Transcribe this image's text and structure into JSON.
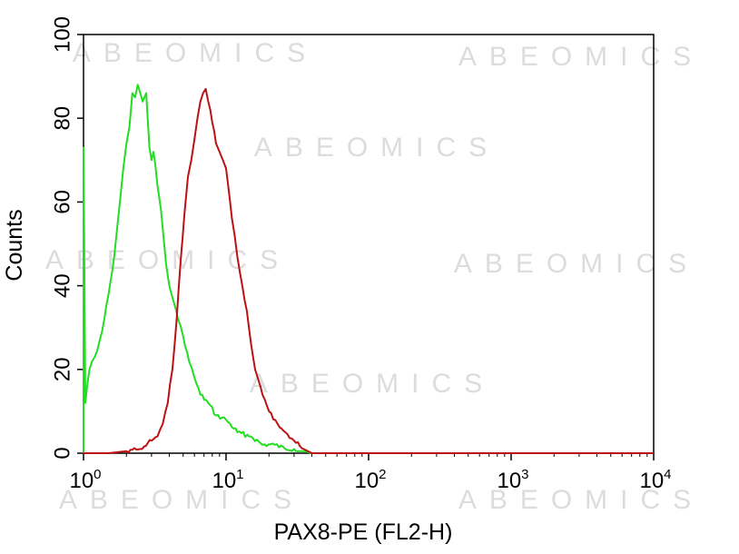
{
  "watermark": "ABEOMICS",
  "chart_data": {
    "type": "line",
    "title": "",
    "xlabel": "PAX8-PE (FL2-H)",
    "ylabel": "Counts",
    "xscale": "log",
    "xlim": [
      1,
      10000
    ],
    "ylim": [
      0,
      100
    ],
    "grid": false,
    "legend": "none",
    "y_ticks": [
      "0",
      "20",
      "40",
      "60",
      "80",
      "100"
    ],
    "x_ticks": [
      {
        "base": "10",
        "exp": "0"
      },
      {
        "base": "10",
        "exp": "1"
      },
      {
        "base": "10",
        "exp": "2"
      },
      {
        "base": "10",
        "exp": "3"
      },
      {
        "base": "10",
        "exp": "4"
      }
    ],
    "series": [
      {
        "color": "#22dd22",
        "x": [
          1.0,
          1.0,
          1.03,
          1.06,
          1.1,
          1.15,
          1.2,
          1.3,
          1.4,
          1.5,
          1.6,
          1.7,
          1.8,
          1.9,
          2.0,
          2.1,
          2.2,
          2.3,
          2.4,
          2.5,
          2.6,
          2.75,
          2.9,
          3.0,
          3.1,
          3.3,
          3.5,
          3.8,
          4.0,
          4.3,
          4.6,
          5.0,
          5.5,
          6.0,
          6.6,
          7.5,
          8.5,
          10.0,
          12.0,
          15.0,
          18.0,
          22.0,
          26.0,
          30.0,
          35.0,
          40.0,
          50.0,
          100.0,
          1000.0,
          10000.0
        ],
        "y": [
          0,
          73,
          12,
          16,
          20,
          22,
          23,
          27,
          32,
          38,
          44,
          52,
          60,
          68,
          74,
          78,
          86,
          85,
          88,
          86,
          84,
          86,
          73,
          70,
          72,
          64,
          58,
          45,
          40,
          36,
          32,
          28,
          22,
          18,
          14,
          12,
          9,
          8,
          5,
          4,
          2,
          2,
          1,
          1,
          0.5,
          0,
          0,
          0,
          0,
          0
        ]
      },
      {
        "color": "#bb1111",
        "x": [
          1.0,
          1.5,
          2.0,
          2.5,
          3.0,
          3.3,
          3.6,
          3.9,
          4.2,
          4.5,
          4.8,
          5.1,
          5.4,
          5.7,
          6.0,
          6.3,
          6.6,
          6.9,
          7.2,
          7.5,
          8.0,
          8.5,
          9.0,
          9.5,
          10.0,
          11.0,
          12.0,
          13.0,
          14.0,
          15.0,
          16.0,
          18.0,
          20.0,
          23.0,
          26.0,
          30.0,
          35.0,
          40.0,
          50.0,
          100.0,
          1000.0,
          10000.0
        ],
        "y": [
          0,
          0,
          0.5,
          1,
          3,
          4,
          7,
          12,
          20,
          32,
          46,
          57,
          66,
          70,
          75,
          80,
          84,
          86,
          87,
          84,
          79,
          74,
          72,
          70,
          68,
          56,
          47,
          40,
          34,
          26,
          20,
          14,
          10,
          7,
          5,
          3,
          1,
          0,
          0,
          0,
          0,
          0
        ]
      }
    ]
  }
}
